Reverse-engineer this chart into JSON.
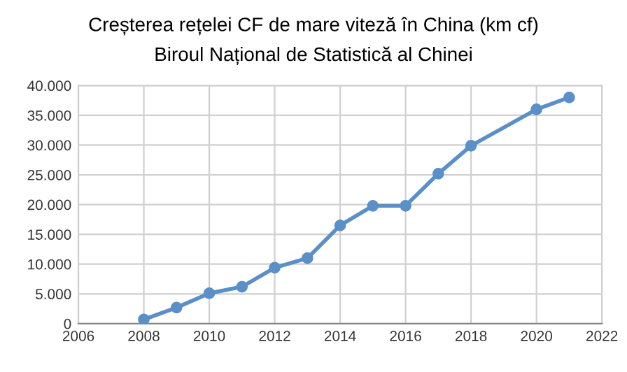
{
  "chart_data": {
    "type": "line",
    "title": "Creșterea rețelei CF de mare viteză în China (km cf)",
    "subtitle": "Biroul Național de Statistică al Chinei",
    "x": [
      2008,
      2009,
      2010,
      2011,
      2012,
      2013,
      2014,
      2015,
      2016,
      2017,
      2018,
      2020,
      2021
    ],
    "series": [
      {
        "color": "#5b8fc7",
        "values": [
          700,
          2700,
          5100,
          6200,
          9400,
          11000,
          16500,
          19800,
          19800,
          25200,
          29900,
          36000,
          38000
        ]
      }
    ],
    "xlim": [
      2006,
      2022
    ],
    "xticks": [
      2006,
      2008,
      2010,
      2012,
      2014,
      2016,
      2018,
      2020,
      2022
    ],
    "ylim": [
      0,
      40000
    ],
    "yticks": [
      0,
      {
        "value": 5000,
        "label": "5.000"
      },
      {
        "value": 10000,
        "label": "10.000"
      },
      {
        "value": 15000,
        "label": "15.000"
      },
      {
        "value": 20000,
        "label": "20.000"
      },
      {
        "value": 25000,
        "label": "25.000"
      },
      {
        "value": 30000,
        "label": "30.000"
      },
      {
        "value": 35000,
        "label": "35.000"
      },
      {
        "value": 40000,
        "label": "40.000"
      }
    ],
    "grid": true,
    "marker": "circle",
    "line_style": "solid",
    "legend": false
  }
}
